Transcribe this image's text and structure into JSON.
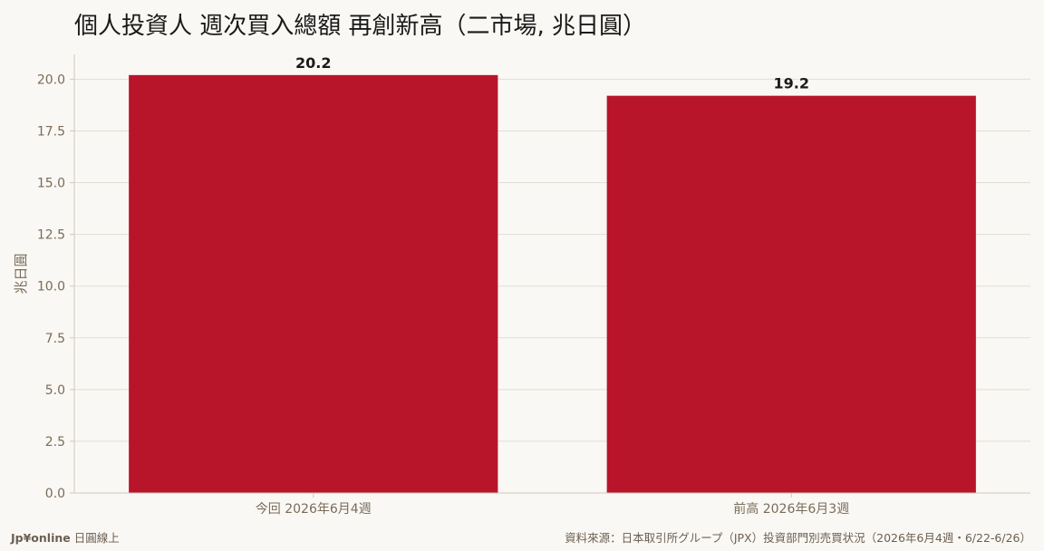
{
  "title": "個人投資人 週次買入總額 再創新高（二市場, 兆日圓）",
  "footer": {
    "brand_bold": "Jp¥online",
    "brand_rest": "日圓線上",
    "source": "資料來源：日本取引所グループ（JPX）投資部門別売買状況（2026年6月4週・6/22-6/26）"
  },
  "colors": {
    "bar": "#b8152b",
    "grid": "#e2ddd5",
    "axis": "#cfc8bd",
    "tick_text": "#7a6b5a"
  },
  "chart_data": {
    "type": "bar",
    "title": "個人投資人 週次買入總額 再創新高（二市場, 兆日圓）",
    "categories": [
      "今回 2026年6月4週",
      "前高 2026年6月3週"
    ],
    "values": [
      20.2,
      19.2
    ],
    "value_labels": [
      "20.2",
      "19.2"
    ],
    "xlabel": "",
    "ylabel": "兆日圓",
    "ylim": [
      0,
      21.2
    ],
    "yticks": [
      "0.0",
      "2.5",
      "5.0",
      "7.5",
      "10.0",
      "12.5",
      "15.0",
      "17.5",
      "20.0"
    ],
    "grid": true,
    "legend": "none"
  }
}
